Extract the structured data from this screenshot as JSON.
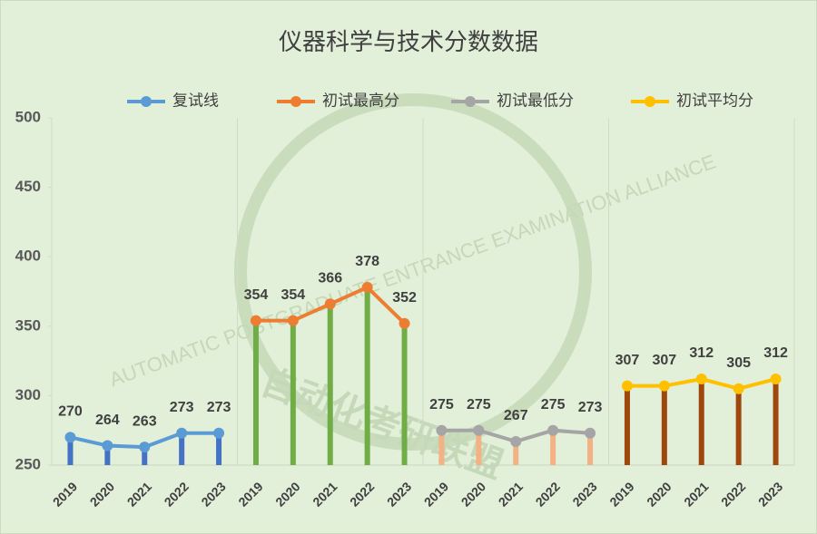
{
  "chart_data": {
    "type": "line",
    "title": "仪器科学与技术分数数据",
    "watermark": [
      "AUTOMATIC POSTGRADUATE ENTRANCE EXAMINATION ALLIANCE",
      "自动化考研联盟"
    ],
    "categories": [
      "2019",
      "2020",
      "2021",
      "2022",
      "2023",
      "2019",
      "2020",
      "2021",
      "2022",
      "2023",
      "2019",
      "2020",
      "2021",
      "2022",
      "2023",
      "2019",
      "2020",
      "2021",
      "2022",
      "2023"
    ],
    "series": [
      {
        "name": "复试线",
        "color": "#5b9bd5",
        "bar_color": "#4472c4",
        "values": [
          270,
          264,
          263,
          273,
          273,
          null,
          null,
          null,
          null,
          null,
          null,
          null,
          null,
          null,
          null,
          null,
          null,
          null,
          null,
          null
        ]
      },
      {
        "name": "初试最高分",
        "color": "#ed7d31",
        "bar_color": "#70ad47",
        "values": [
          null,
          null,
          null,
          null,
          null,
          354,
          354,
          366,
          378,
          352,
          null,
          null,
          null,
          null,
          null,
          null,
          null,
          null,
          null,
          null
        ]
      },
      {
        "name": "初试最低分",
        "color": "#a5a5a5",
        "bar_color": "#f4b183",
        "values": [
          null,
          null,
          null,
          null,
          null,
          null,
          null,
          null,
          null,
          null,
          275,
          275,
          267,
          275,
          273,
          null,
          null,
          null,
          null,
          null
        ]
      },
      {
        "name": "初试平均分",
        "color": "#ffc000",
        "bar_color": "#9e480e",
        "values": [
          null,
          null,
          null,
          null,
          null,
          null,
          null,
          null,
          null,
          null,
          null,
          null,
          null,
          null,
          null,
          307,
          307,
          312,
          305,
          312
        ]
      }
    ],
    "ylim": [
      250,
      500
    ],
    "yticks": [
      250,
      300,
      350,
      400,
      450,
      500
    ],
    "legend": "top"
  }
}
